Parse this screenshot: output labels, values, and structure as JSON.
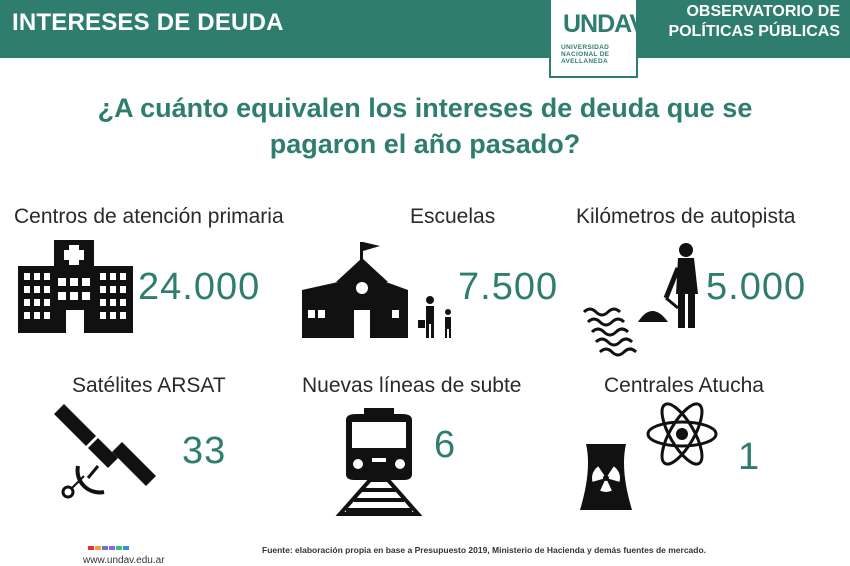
{
  "header": {
    "title": "INTERESES DE DEUDA",
    "logo_text": "UNDAV",
    "logo_subtitle": "UNIVERSIDAD NACIONAL DE AVELLANEDA",
    "observatorio_line1": "OBSERVATORIO DE",
    "observatorio_line2": "POLÍTICAS PÚBLICAS"
  },
  "question": {
    "line1": "¿A cuánto equivalen los intereses de deuda que se",
    "line2": "pagaron el año pasado?"
  },
  "items": [
    {
      "label": "Centros de atención primaria",
      "value": "24.000",
      "icon": "hospital-icon"
    },
    {
      "label": "Escuelas",
      "value": "7.500",
      "icon": "school-icon"
    },
    {
      "label": "Kilómetros de autopista",
      "value": "5.000",
      "icon": "road-worker-icon"
    },
    {
      "label": "Satélites ARSAT",
      "value": "33",
      "icon": "satellite-icon"
    },
    {
      "label": "Nuevas líneas de subte",
      "value": "6",
      "icon": "train-icon"
    },
    {
      "label": "Centrales Atucha",
      "value": "1",
      "icon": "nuclear-plant-icon"
    }
  ],
  "footer": {
    "url": "www.undav.edu.ar",
    "source": "Fuente: elaboración propia en base a Presupuesto 2019, Ministerio de Hacienda y demás fuentes de mercado."
  },
  "colors": {
    "accent": "#2f7d6e",
    "text": "#2a2a2a",
    "brand_dots": [
      "#e3342f",
      "#f6993f",
      "#6574cd",
      "#9561e2",
      "#38c172",
      "#3490dc"
    ]
  }
}
